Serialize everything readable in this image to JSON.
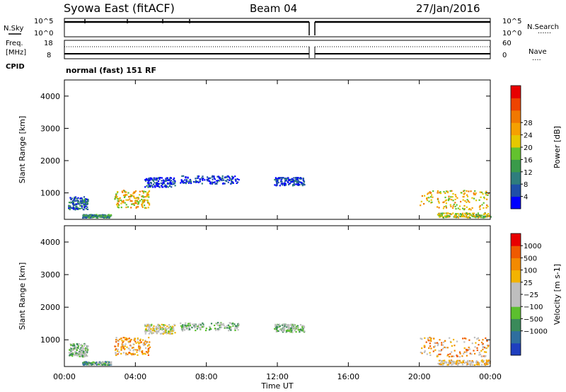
{
  "header": {
    "title": "Syowa East (fitACF)",
    "beam": "Beam 04",
    "date": "27/Jan/2016"
  },
  "top_panels": {
    "left_labels": [
      "N.Sky",
      "Freq.",
      "[MHz]",
      "CPID"
    ],
    "right_labels": [
      "N.Search",
      "Nave"
    ],
    "noise_ticks_left": [
      "10^5",
      "10^0"
    ],
    "noise_ticks_right": [
      "10^5",
      "10^0"
    ],
    "freq_ticks_left": [
      "18",
      "8"
    ],
    "nave_ticks_right": [
      "60",
      "0"
    ],
    "cpid_text": "normal (fast) 151 RF"
  },
  "chart_data": [
    {
      "type": "heatmap",
      "title": "",
      "xlabel": "",
      "ylabel": "Slant Range [km]",
      "xlim_hours": [
        0,
        24
      ],
      "ylim_km": [
        180,
        4500
      ],
      "xticks": [
        "00:00",
        "04:00",
        "08:00",
        "12:00",
        "16:00",
        "20:00",
        "00:00"
      ],
      "yticks": [
        1000,
        2000,
        3000,
        4000
      ],
      "colorbar": {
        "label": "Power [dB]",
        "ticks": [
          "4",
          "8",
          "12",
          "16",
          "20",
          "24",
          "28"
        ],
        "colors": [
          "#0000ff",
          "#1f4fa8",
          "#2e7d7d",
          "#3a9a4a",
          "#63c22e",
          "#e6c800",
          "#f5a000",
          "#f07800",
          "#ee4400",
          "#e80000"
        ]
      },
      "scatter_clusters": [
        {
          "t": [
            0.2,
            1.3
          ],
          "r": [
            500,
            900
          ],
          "level": 2
        },
        {
          "t": [
            1.0,
            2.6
          ],
          "r": [
            250,
            350
          ],
          "level": 3
        },
        {
          "t": [
            2.8,
            4.8
          ],
          "r": [
            550,
            1100
          ],
          "level": 6
        },
        {
          "t": [
            4.5,
            6.2
          ],
          "r": [
            1200,
            1500
          ],
          "level": 1
        },
        {
          "t": [
            6.5,
            9.8
          ],
          "r": [
            1300,
            1550
          ],
          "level": 1
        },
        {
          "t": [
            11.8,
            13.5
          ],
          "r": [
            1250,
            1500
          ],
          "level": 1
        },
        {
          "t": [
            20.0,
            23.9
          ],
          "r": [
            500,
            1100
          ],
          "level": 6
        },
        {
          "t": [
            21.0,
            24.0
          ],
          "r": [
            250,
            400
          ],
          "level": 5
        }
      ]
    },
    {
      "type": "heatmap",
      "title": "",
      "xlabel": "Time UT",
      "ylabel": "Slant Range [km]",
      "xlim_hours": [
        0,
        24
      ],
      "ylim_km": [
        180,
        4500
      ],
      "xticks": [
        "00:00",
        "04:00",
        "08:00",
        "12:00",
        "16:00",
        "20:00",
        "00:00"
      ],
      "yticks": [
        1000,
        2000,
        3000,
        4000
      ],
      "colorbar": {
        "label": "Velocity [m s-1]",
        "ticks": [
          "1000",
          "500",
          "100",
          "25",
          "−25",
          "−100",
          "−500",
          "−1000"
        ],
        "colors": [
          "#1f3fbf",
          "#2e6e9e",
          "#3a8a5a",
          "#5cbf2e",
          "#bebebe",
          "#bebebe",
          "#f2b300",
          "#f28a00",
          "#ef5a00",
          "#e80000"
        ]
      },
      "scatter_clusters": [
        {
          "t": [
            0.2,
            1.3
          ],
          "r": [
            500,
            900
          ],
          "level": 4
        },
        {
          "t": [
            1.0,
            2.6
          ],
          "r": [
            250,
            350
          ],
          "level": 3
        },
        {
          "t": [
            2.8,
            4.8
          ],
          "r": [
            550,
            1100
          ],
          "level": 7
        },
        {
          "t": [
            4.5,
            6.2
          ],
          "r": [
            1200,
            1500
          ],
          "level": 5
        },
        {
          "t": [
            6.5,
            9.8
          ],
          "r": [
            1300,
            1550
          ],
          "level": 4
        },
        {
          "t": [
            11.8,
            13.5
          ],
          "r": [
            1250,
            1500
          ],
          "level": 4
        },
        {
          "t": [
            20.0,
            23.9
          ],
          "r": [
            500,
            1100
          ],
          "level": 7
        },
        {
          "t": [
            21.0,
            24.0
          ],
          "r": [
            250,
            400
          ],
          "level": 6
        }
      ]
    }
  ]
}
